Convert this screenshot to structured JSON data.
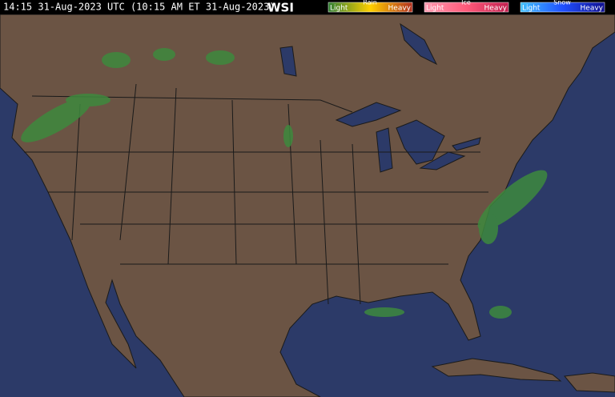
{
  "header": {
    "timestamp": "14:15 31-Aug-2023 UTC  (10:15 AM ET 31-Aug-2023)",
    "logo": "WSI"
  },
  "legend": {
    "groups": [
      {
        "name": "Rain",
        "light": "Light",
        "heavy": "Heavy"
      },
      {
        "name": "Ice",
        "light": "Light",
        "heavy": "Heavy"
      },
      {
        "name": "Snow",
        "light": "Light",
        "heavy": "Heavy"
      }
    ]
  }
}
